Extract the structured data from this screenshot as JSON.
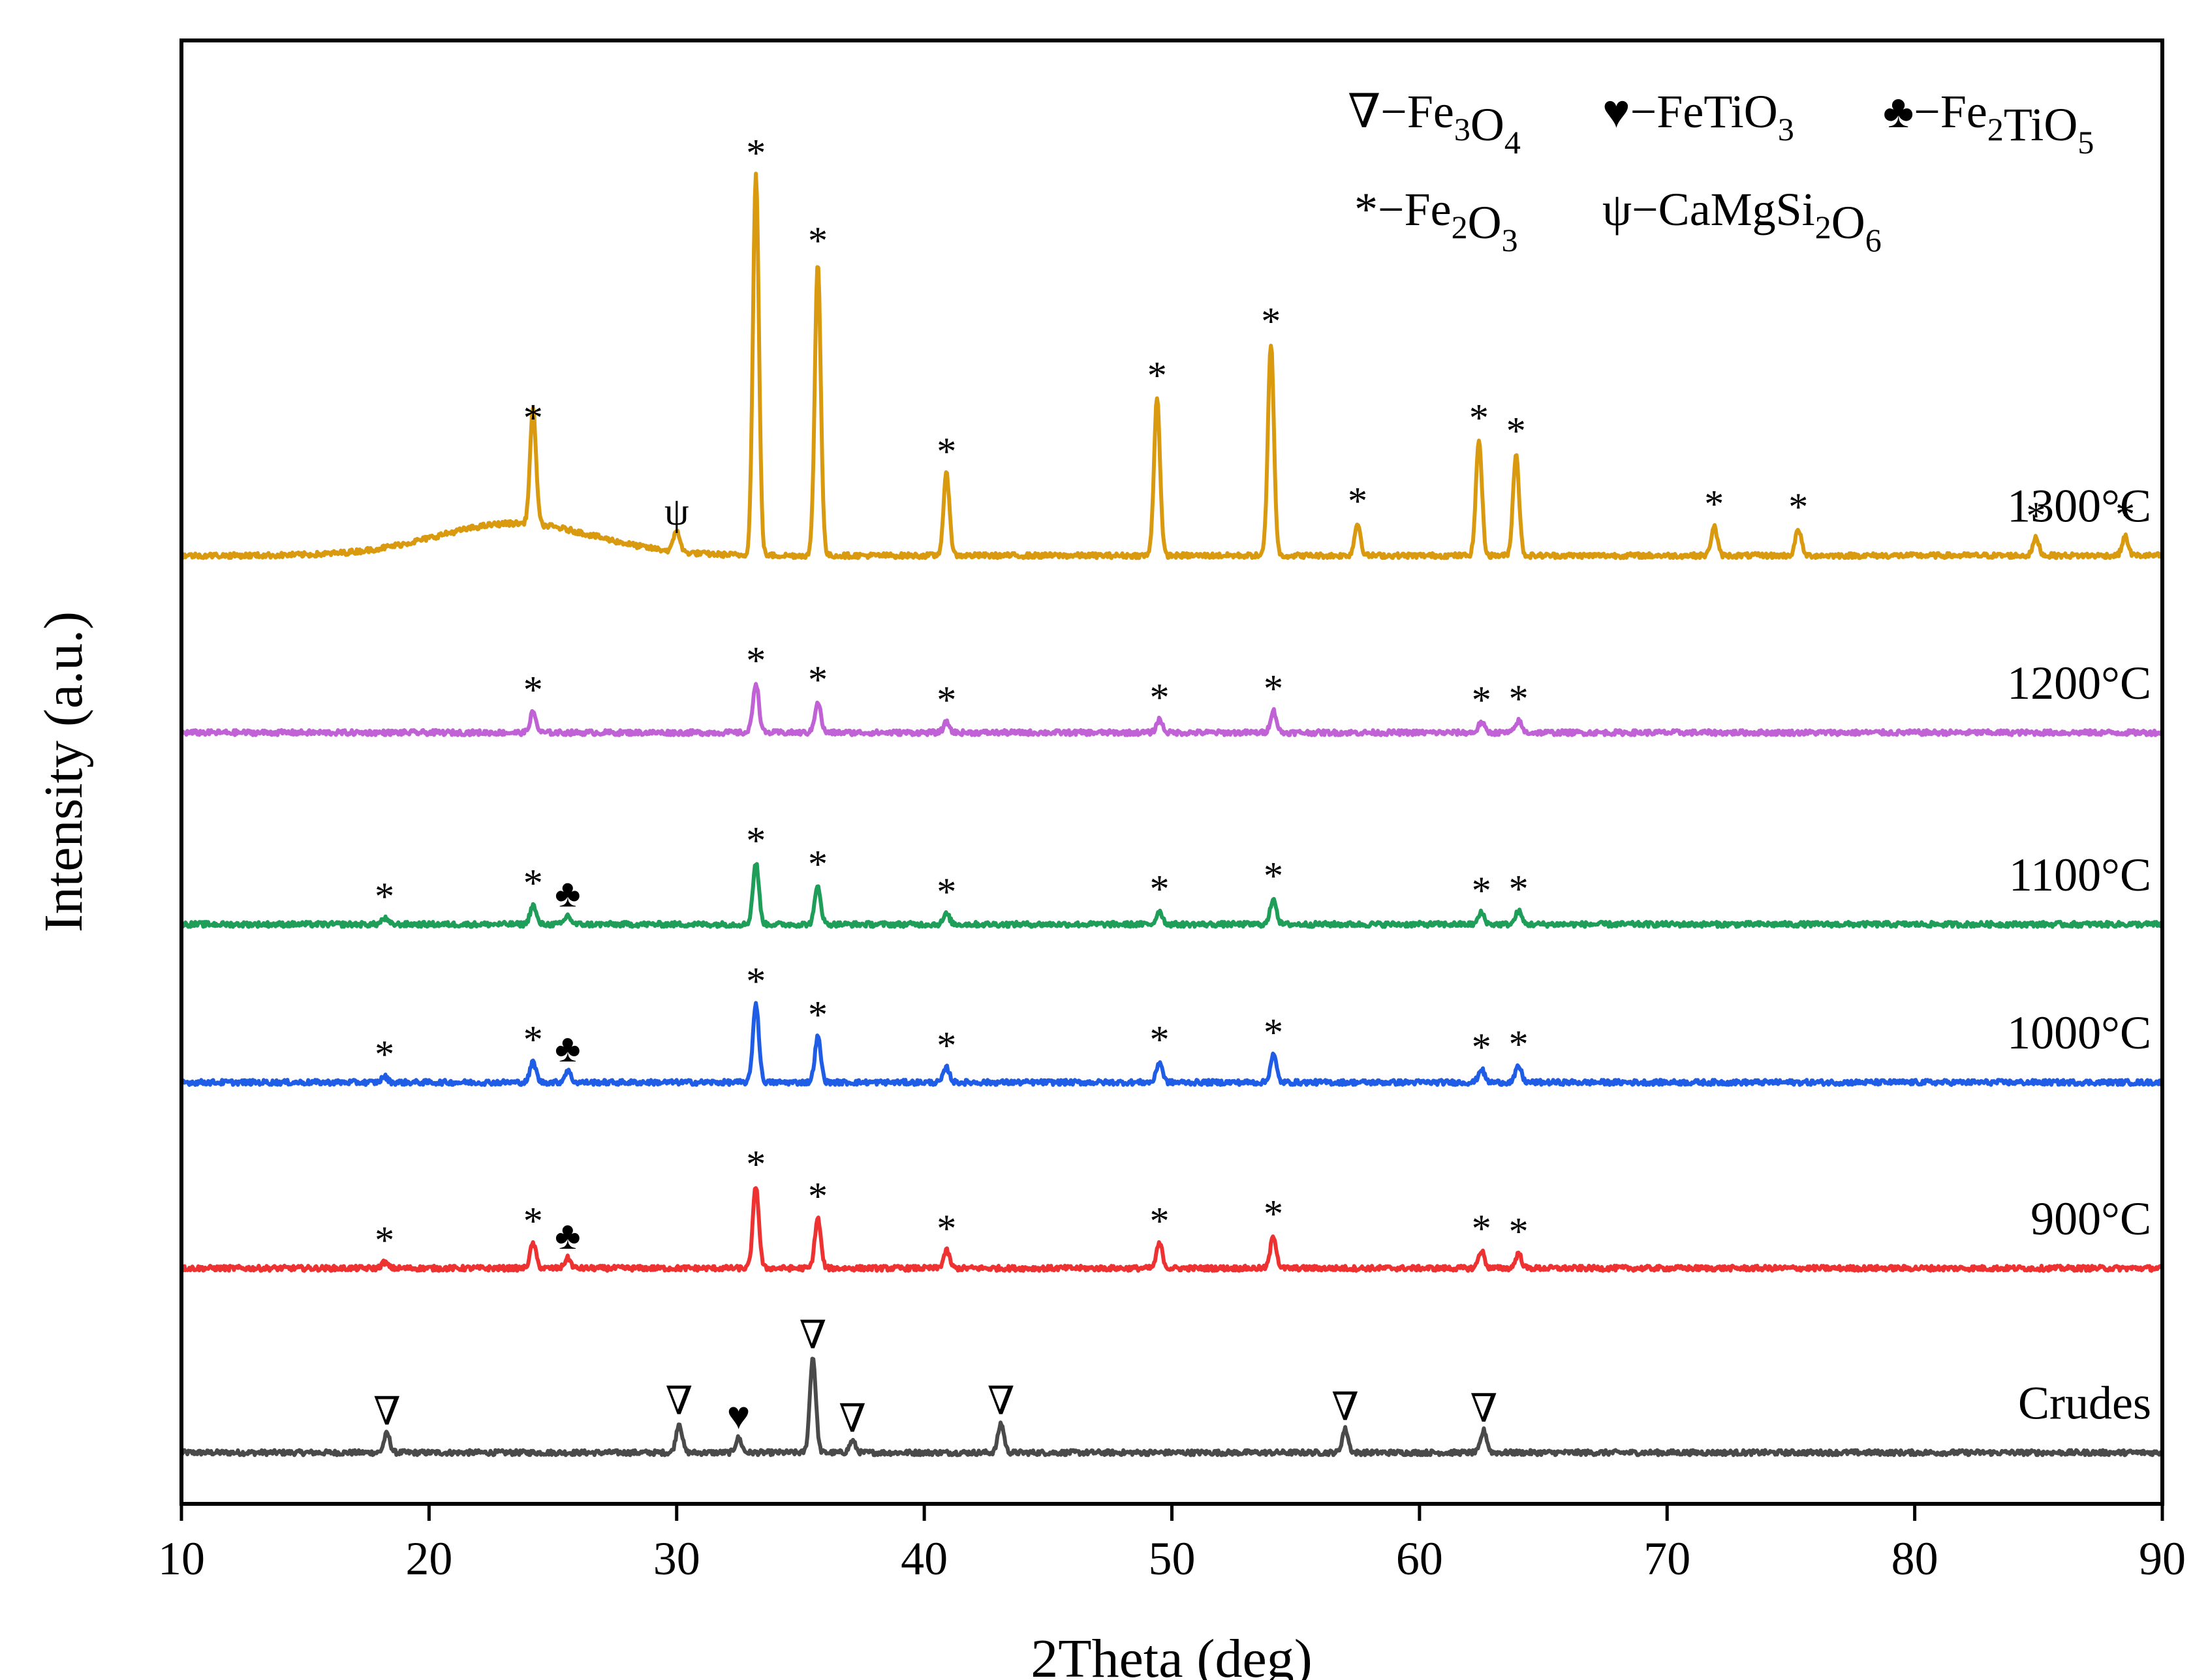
{
  "chart_data": {
    "type": "line",
    "title": "",
    "xlabel": "2Theta (deg)",
    "ylabel": "Intensity (a.u.)",
    "xlim": [
      10,
      90
    ],
    "xticks": [
      10,
      20,
      30,
      40,
      50,
      60,
      70,
      80,
      90
    ],
    "ylim": [
      0,
      100
    ],
    "grid": false,
    "legend_position": "top-right",
    "legend": [
      {
        "symbol": "∇",
        "formula": [
          "−Fe",
          "3",
          "O",
          "4"
        ]
      },
      {
        "symbol": "♥",
        "formula": [
          "−FeTiO",
          "3"
        ]
      },
      {
        "symbol": "♣",
        "formula": [
          "−Fe",
          "2",
          "TiO",
          "5"
        ]
      },
      {
        "symbol": "*",
        "formula": [
          "−Fe",
          "2",
          "O",
          "3"
        ]
      },
      {
        "symbol": "ψ",
        "formula": [
          "−CaMgSi",
          "2",
          "O",
          "6"
        ]
      }
    ],
    "series": [
      {
        "name": "Crudes",
        "color": "#4a4a4a",
        "baseline": 3.5,
        "hump": 0,
        "peaks": [
          {
            "x": 18.3,
            "h": 1.3,
            "m": "∇"
          },
          {
            "x": 30.1,
            "h": 2.0,
            "m": "∇"
          },
          {
            "x": 32.5,
            "h": 1.0,
            "m": "♥"
          },
          {
            "x": 35.5,
            "h": 6.5,
            "m": "∇"
          },
          {
            "x": 37.1,
            "h": 0.8,
            "m": "∇"
          },
          {
            "x": 43.1,
            "h": 2.0,
            "m": "∇"
          },
          {
            "x": 57.0,
            "h": 1.6,
            "m": "∇"
          },
          {
            "x": 62.6,
            "h": 1.5,
            "m": "∇"
          }
        ]
      },
      {
        "name": "900°C",
        "color": "#ee3232",
        "baseline": 16.1,
        "hump": 0,
        "peaks": [
          {
            "x": 18.2,
            "h": 0.4,
            "m": "*"
          },
          {
            "x": 24.2,
            "h": 1.7,
            "m": "*"
          },
          {
            "x": 25.6,
            "h": 0.7,
            "m": "♣"
          },
          {
            "x": 33.2,
            "h": 5.6,
            "m": "*"
          },
          {
            "x": 35.7,
            "h": 3.4,
            "m": "*"
          },
          {
            "x": 40.9,
            "h": 1.2,
            "m": "*"
          },
          {
            "x": 49.5,
            "h": 1.7,
            "m": "*"
          },
          {
            "x": 54.1,
            "h": 2.2,
            "m": "*"
          },
          {
            "x": 62.5,
            "h": 1.2,
            "m": "*"
          },
          {
            "x": 64.0,
            "h": 1.0,
            "m": "*"
          }
        ]
      },
      {
        "name": "1000°C",
        "color": "#1f5de6",
        "baseline": 28.8,
        "hump": 0,
        "peaks": [
          {
            "x": 18.2,
            "h": 0.4,
            "m": "*"
          },
          {
            "x": 24.2,
            "h": 1.4,
            "m": "*"
          },
          {
            "x": 25.6,
            "h": 0.8,
            "m": "♣"
          },
          {
            "x": 33.2,
            "h": 5.4,
            "m": "*"
          },
          {
            "x": 35.7,
            "h": 3.1,
            "m": "*"
          },
          {
            "x": 40.9,
            "h": 1.0,
            "m": "*"
          },
          {
            "x": 49.5,
            "h": 1.4,
            "m": "*"
          },
          {
            "x": 54.1,
            "h": 1.9,
            "m": "*"
          },
          {
            "x": 62.5,
            "h": 0.9,
            "m": "*"
          },
          {
            "x": 64.0,
            "h": 1.1,
            "m": "*"
          }
        ]
      },
      {
        "name": "1100°C",
        "color": "#1e9e58",
        "baseline": 39.6,
        "hump": 0,
        "peaks": [
          {
            "x": 18.2,
            "h": 0.4,
            "m": "*"
          },
          {
            "x": 24.2,
            "h": 1.3,
            "m": "*"
          },
          {
            "x": 25.6,
            "h": 0.6,
            "m": "♣"
          },
          {
            "x": 33.2,
            "h": 4.2,
            "m": "*"
          },
          {
            "x": 35.7,
            "h": 2.6,
            "m": "*"
          },
          {
            "x": 40.9,
            "h": 0.7,
            "m": "*"
          },
          {
            "x": 49.5,
            "h": 0.9,
            "m": "*"
          },
          {
            "x": 54.1,
            "h": 1.8,
            "m": "*"
          },
          {
            "x": 62.5,
            "h": 0.8,
            "m": "*"
          },
          {
            "x": 64.0,
            "h": 0.9,
            "m": "*"
          }
        ]
      },
      {
        "name": "1200°C",
        "color": "#c062d6",
        "baseline": 52.7,
        "hump": 0,
        "peaks": [
          {
            "x": 24.2,
            "h": 1.4,
            "m": "*"
          },
          {
            "x": 33.2,
            "h": 3.4,
            "m": "*"
          },
          {
            "x": 35.7,
            "h": 2.1,
            "m": "*"
          },
          {
            "x": 40.9,
            "h": 0.7,
            "m": "*"
          },
          {
            "x": 49.5,
            "h": 0.9,
            "m": "*"
          },
          {
            "x": 54.1,
            "h": 1.5,
            "m": "*"
          },
          {
            "x": 62.5,
            "h": 0.7,
            "m": "*"
          },
          {
            "x": 64.0,
            "h": 0.8,
            "m": "*"
          }
        ]
      },
      {
        "name": "1300°C",
        "color": "#d99a0f",
        "baseline": 64.8,
        "hump": 2.2,
        "peaks": [
          {
            "x": 24.2,
            "h": 7.9,
            "m": "*"
          },
          {
            "x": 30.0,
            "h": 1.5,
            "m": "ψ"
          },
          {
            "x": 33.2,
            "h": 26.0,
            "m": "*"
          },
          {
            "x": 35.7,
            "h": 20.0,
            "m": "*"
          },
          {
            "x": 40.9,
            "h": 5.6,
            "m": "*"
          },
          {
            "x": 49.4,
            "h": 10.8,
            "m": "*"
          },
          {
            "x": 54.0,
            "h": 14.5,
            "m": "*"
          },
          {
            "x": 57.5,
            "h": 2.2,
            "m": "*"
          },
          {
            "x": 62.4,
            "h": 7.9,
            "m": "*"
          },
          {
            "x": 63.9,
            "h": 7.0,
            "m": "*"
          },
          {
            "x": 71.9,
            "h": 2.0,
            "m": "*"
          },
          {
            "x": 75.3,
            "h": 1.8,
            "m": "*"
          },
          {
            "x": 84.9,
            "h": 1.2,
            "m": "*"
          },
          {
            "x": 88.5,
            "h": 1.3,
            "m": "*"
          }
        ]
      }
    ]
  }
}
